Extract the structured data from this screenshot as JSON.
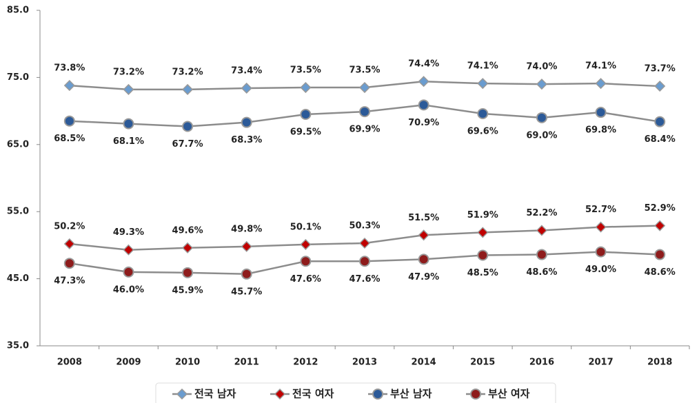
{
  "chart_data": {
    "type": "line",
    "categories": [
      "2008",
      "2009",
      "2010",
      "2011",
      "2012",
      "2013",
      "2014",
      "2015",
      "2016",
      "2017",
      "2018"
    ],
    "series": [
      {
        "name": "전국 남자",
        "color": "#6a9ccf",
        "marker": "diamond",
        "values": [
          73.8,
          73.2,
          73.2,
          73.4,
          73.5,
          73.5,
          74.4,
          74.1,
          74.0,
          74.1,
          73.7
        ],
        "value_labels": [
          "73.8%",
          "73.2%",
          "73.2%",
          "73.4%",
          "73.5%",
          "73.5%",
          "74.4%",
          "74.1%",
          "74.0%",
          "74.1%",
          "73.7%"
        ]
      },
      {
        "name": "전국 여자",
        "color": "#c00000",
        "marker": "diamond",
        "values": [
          50.2,
          49.3,
          49.6,
          49.8,
          50.1,
          50.3,
          51.5,
          51.9,
          52.2,
          52.7,
          52.9
        ],
        "value_labels": [
          "50.2%",
          "49.3%",
          "49.6%",
          "49.8%",
          "50.1%",
          "50.3%",
          "51.5%",
          "51.9%",
          "52.2%",
          "52.7%",
          "52.9%"
        ]
      },
      {
        "name": "부산 남자",
        "color": "#2c5a98",
        "marker": "circle",
        "values": [
          68.5,
          68.1,
          67.7,
          68.3,
          69.5,
          69.9,
          70.9,
          69.6,
          69.0,
          69.8,
          68.4
        ],
        "value_labels": [
          "68.5%",
          "68.1%",
          "67.7%",
          "68.3%",
          "69.5%",
          "69.9%",
          "70.9%",
          "69.6%",
          "69.0%",
          "69.8%",
          "68.4%"
        ]
      },
      {
        "name": "부산 여자",
        "color": "#8e1c1c",
        "marker": "circle",
        "values": [
          47.3,
          46.0,
          45.9,
          45.7,
          47.6,
          47.6,
          47.9,
          48.5,
          48.6,
          49.0,
          48.6
        ],
        "value_labels": [
          "47.3%",
          "46.0%",
          "45.9%",
          "45.7%",
          "47.6%",
          "47.6%",
          "47.9%",
          "48.5%",
          "48.6%",
          "49.0%",
          "48.6%"
        ]
      }
    ],
    "ylim": [
      35,
      85
    ],
    "yticks": [
      {
        "value": 35,
        "label": "35.0"
      },
      {
        "value": 45,
        "label": "45.0"
      },
      {
        "value": 55,
        "label": "55.0"
      },
      {
        "value": 65,
        "label": "65.0"
      },
      {
        "value": 75,
        "label": "75.0"
      },
      {
        "value": 85,
        "label": "85.0"
      }
    ],
    "grid": false,
    "legend": "bottom"
  }
}
